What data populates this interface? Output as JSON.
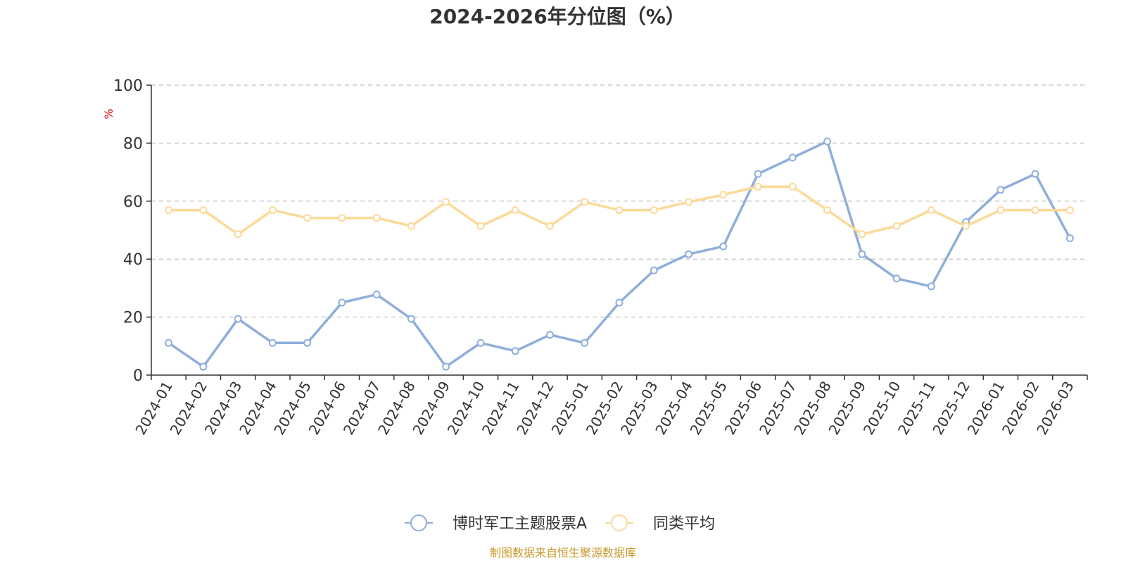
{
  "chart_data": {
    "type": "line",
    "title": "2024-2026年分位图（%）",
    "y_unit": "%",
    "ylim": [
      0,
      100
    ],
    "y_ticks": [
      "0",
      "20",
      "40",
      "60",
      "80",
      "100"
    ],
    "grid": true,
    "legend_position": "bottom-center",
    "categories": [
      "2024-01",
      "2024-02",
      "2024-03",
      "2024-04",
      "2024-05",
      "2024-06",
      "2024-07",
      "2024-08",
      "2024-09",
      "2024-10",
      "2024-11",
      "2024-12",
      "2025-01",
      "2025-02",
      "2025-03",
      "2025-04",
      "2025-05",
      "2025-06",
      "2025-07",
      "2025-08",
      "2025-09",
      "2025-10",
      "2025-11",
      "2025-12",
      "2026-01",
      "2026-02",
      "2026-03"
    ],
    "series": [
      {
        "name": "博时军工主题股票A",
        "color": "#8eaedb",
        "values": [
          11.1,
          2.9,
          19.4,
          11.1,
          11.1,
          25.0,
          27.8,
          19.4,
          2.9,
          11.1,
          8.3,
          13.9,
          11.1,
          25.0,
          36.1,
          41.7,
          44.4,
          69.4,
          75.0,
          80.6,
          41.7,
          33.3,
          30.6,
          52.8,
          63.9,
          69.4,
          47.2
        ]
      },
      {
        "name": "同类平均",
        "color": "#fcd997",
        "values": [
          56.9,
          56.9,
          48.6,
          56.9,
          54.2,
          54.2,
          54.2,
          51.4,
          59.7,
          51.4,
          56.9,
          51.4,
          59.7,
          56.9,
          56.9,
          59.7,
          62.2,
          65.0,
          65.0,
          56.9,
          48.6,
          51.4,
          56.9,
          51.4,
          56.9,
          56.9,
          56.9
        ]
      }
    ]
  },
  "source_text": "制图数据来自恒生聚源数据库",
  "colors": {
    "unit": "#e00000",
    "source": "#c9972a",
    "axis": "#333333",
    "grid": "#cccccc"
  }
}
